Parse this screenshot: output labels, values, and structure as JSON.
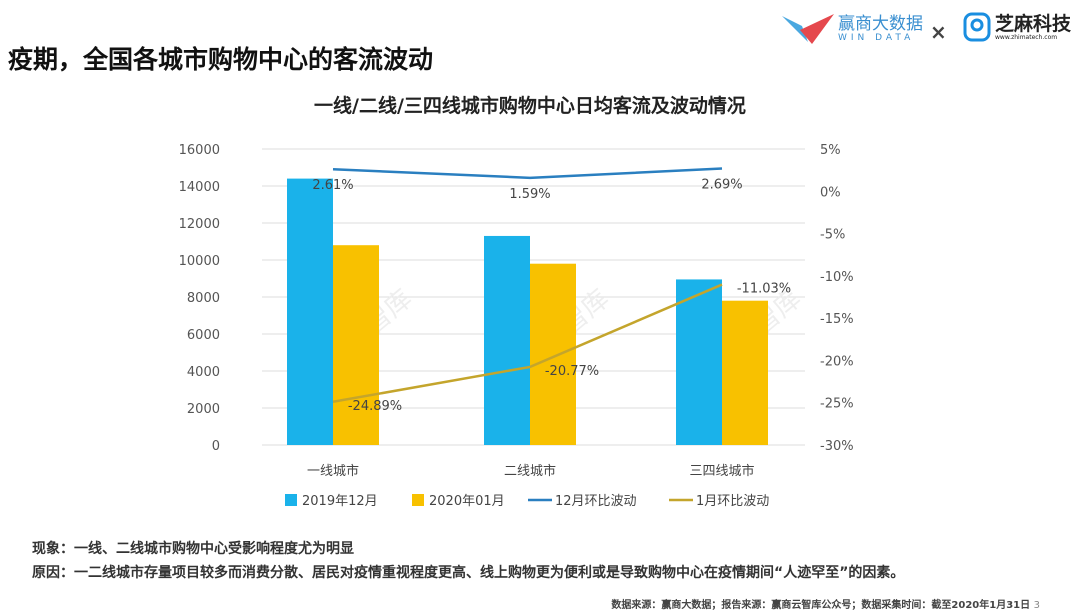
{
  "page_title": "疫期，全国各城市购物中心的客流波动",
  "logos": {
    "win_data_cn": "赢商大数据",
    "win_data_en": "WIN DATA",
    "times": "×",
    "zhima_cn": "芝麻科技",
    "zhima_url": "www.zhimatech.com"
  },
  "watermark": "赢商云智库",
  "chart_data": {
    "type": "bar",
    "title": "一线/二线/三四线城市购物中心日均客流及波动情况",
    "categories": [
      "一线城市",
      "二线城市",
      "三四线城市"
    ],
    "ylim": [
      0,
      16000
    ],
    "y_ticks": [
      "0",
      "2000",
      "4000",
      "6000",
      "8000",
      "10000",
      "12000",
      "14000",
      "16000"
    ],
    "y2lim": [
      -30,
      5
    ],
    "y2_ticks": [
      "-30%",
      "-25%",
      "-20%",
      "-15%",
      "-10%",
      "-5%",
      "0%",
      "5%"
    ],
    "series": [
      {
        "name": "2019年12月",
        "type": "bar",
        "axis": "left",
        "color": "#1ab2ea",
        "values": [
          14400,
          11300,
          8950
        ]
      },
      {
        "name": "2020年01月",
        "type": "bar",
        "axis": "left",
        "color": "#f8c100",
        "values": [
          10800,
          9800,
          7800
        ]
      },
      {
        "name": "12月环比波动",
        "type": "line",
        "axis": "right",
        "color": "#2a7fc0",
        "values": [
          2.61,
          1.59,
          2.69
        ],
        "labels": [
          "2.61%",
          "1.59%",
          "2.69%"
        ]
      },
      {
        "name": "1月环比波动",
        "type": "line",
        "axis": "right",
        "color": "#c4a52c",
        "values": [
          -24.89,
          -20.77,
          -11.03
        ],
        "labels": [
          "-24.89%",
          "-20.77%",
          "-11.03%"
        ]
      }
    ],
    "legend": "bottom"
  },
  "notes": {
    "phenomenon": "现象：一线、二线城市购物中心受影响程度尤为明显",
    "reason": "原因：一二线城市存量项目较多而消费分散、居民对疫情重视程度更高、线上购物更为便利或是导致购物中心在疫情期间“人迹罕至”的因素。"
  },
  "footer": "数据来源：赢商大数据；报告来源：赢商云智库公众号；数据采集时间：截至2020年1月31日",
  "page_number": "3"
}
